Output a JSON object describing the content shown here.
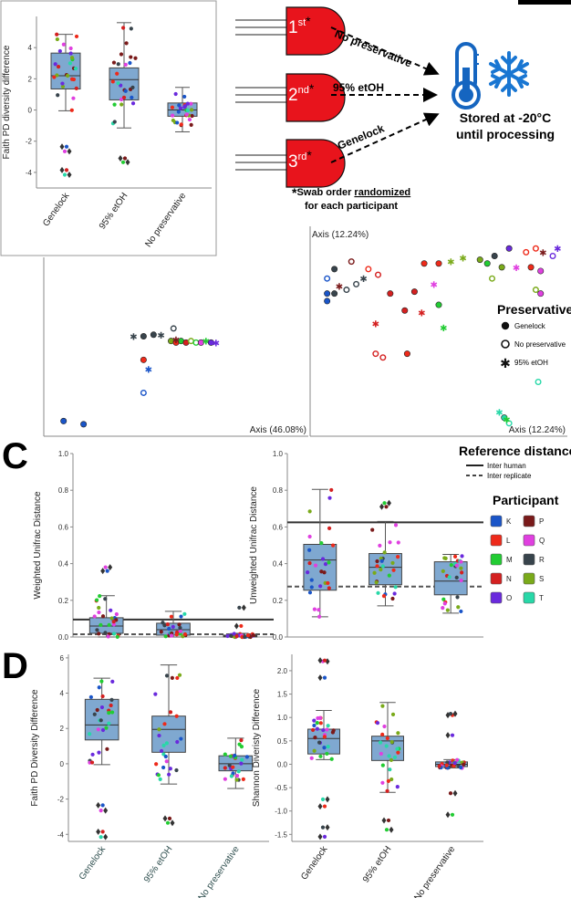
{
  "figure": {
    "panel_labels": {
      "c": "C",
      "d": "D"
    },
    "workflow": {
      "swabs": [
        {
          "num": "1",
          "sup": "st",
          "star": "*"
        },
        {
          "num": "2",
          "sup": "nd",
          "star": "*"
        },
        {
          "num": "3",
          "sup": "rd",
          "star": "*"
        }
      ],
      "arrow_labels": [
        "No preservative",
        "95% etOH",
        "Genelock"
      ],
      "storage_line1": "Stored at -20°C",
      "storage_line2": "until processing",
      "note_star": "*",
      "note_pre": "Swab order ",
      "note_underlined": "randomized",
      "note_line2": "for each participant",
      "colors": {
        "swab": "#e8141c",
        "thermometer": "#1565c0",
        "snowflake": "#1976d2"
      }
    },
    "preservative_legend": {
      "title": "Preservative",
      "items": [
        {
          "marker": "filled-circle",
          "label": "Genelock"
        },
        {
          "marker": "open-circle",
          "label": "No preservative"
        },
        {
          "marker": "star",
          "label": "95% etOH"
        }
      ]
    },
    "reference_legend": {
      "title": "Reference distance",
      "items": [
        {
          "style": "solid",
          "label": "Inter human"
        },
        {
          "style": "dashed",
          "label": "Inter replicate"
        }
      ]
    },
    "participant_legend": {
      "title": "Participant",
      "items": [
        {
          "label": "K",
          "color": "#1a55c8"
        },
        {
          "label": "P",
          "color": "#7a1a1a"
        },
        {
          "label": "L",
          "color": "#ee2a1a"
        },
        {
          "label": "Q",
          "color": "#e040e0"
        },
        {
          "label": "M",
          "color": "#22cc33"
        },
        {
          "label": "R",
          "color": "#38444c"
        },
        {
          "label": "N",
          "color": "#d42020"
        },
        {
          "label": "S",
          "color": "#7aaa1a"
        },
        {
          "label": "O",
          "color": "#6a2add"
        },
        {
          "label": "T",
          "color": "#28d8a8"
        }
      ]
    }
  },
  "chart_data": [
    {
      "id": "inset",
      "type": "box",
      "title": "",
      "ylabel": "Faith PD diversity difference",
      "xlabel": "",
      "categories": [
        "Genelock",
        "95% etOH",
        "No preservative"
      ],
      "ylim": [
        -5,
        6
      ],
      "yticks": [
        -4,
        -2,
        0,
        2,
        4
      ],
      "boxes": [
        {
          "q1": 1.35,
          "median": 2.2,
          "q3": 3.65,
          "whisker_low": -0.05,
          "whisker_high": 4.85
        },
        {
          "q1": 0.65,
          "median": 1.95,
          "q3": 2.7,
          "whisker_low": -1.15,
          "whisker_high": 5.6
        },
        {
          "q1": -0.4,
          "median": 0.0,
          "q3": 0.45,
          "whisker_low": -1.4,
          "whisker_high": 1.45
        }
      ],
      "outliers": [
        [
          -2.35,
          -2.65,
          -3.85,
          -4.15
        ],
        [
          -3.1,
          -3.35
        ],
        []
      ]
    },
    {
      "id": "pcoa-left",
      "type": "scatter",
      "xlabel": "Axis (46.08%)",
      "ylabel": "",
      "points": [
        {
          "x": 0.05,
          "y": 0.05,
          "participant": "K",
          "preservative": "Genelock"
        },
        {
          "x": 0.13,
          "y": 0.03,
          "participant": "K",
          "preservative": "Genelock"
        },
        {
          "x": 0.37,
          "y": 0.23,
          "participant": "K",
          "preservative": "No preservative"
        },
        {
          "x": 0.39,
          "y": 0.38,
          "participant": "K",
          "preservative": "95% etOH"
        },
        {
          "x": 0.37,
          "y": 0.44,
          "participant": "L",
          "preservative": "Genelock"
        },
        {
          "x": 0.41,
          "y": 0.6,
          "participant": "R",
          "preservative": "Genelock"
        },
        {
          "x": 0.37,
          "y": 0.59,
          "participant": "R",
          "preservative": "Genelock"
        },
        {
          "x": 0.33,
          "y": 0.59,
          "participant": "R",
          "preservative": "95% etOH"
        },
        {
          "x": 0.44,
          "y": 0.6,
          "participant": "R",
          "preservative": "95% etOH"
        },
        {
          "x": 0.49,
          "y": 0.64,
          "participant": "R",
          "preservative": "No preservative"
        },
        {
          "x": 0.48,
          "y": 0.56,
          "participant": "S",
          "preservative": "Genelock"
        },
        {
          "x": 0.5,
          "y": 0.55,
          "participant": "L",
          "preservative": "Genelock"
        },
        {
          "x": 0.52,
          "y": 0.56,
          "participant": "M",
          "preservative": "Genelock"
        },
        {
          "x": 0.54,
          "y": 0.55,
          "participant": "N",
          "preservative": "Genelock"
        },
        {
          "x": 0.56,
          "y": 0.56,
          "participant": "S",
          "preservative": "No preservative"
        },
        {
          "x": 0.58,
          "y": 0.55,
          "participant": "M",
          "preservative": "No preservative"
        },
        {
          "x": 0.5,
          "y": 0.57,
          "participant": "P",
          "preservative": "95% etOH"
        },
        {
          "x": 0.6,
          "y": 0.55,
          "participant": "Q",
          "preservative": "Genelock"
        },
        {
          "x": 0.62,
          "y": 0.56,
          "participant": "M",
          "preservative": "95% etOH"
        },
        {
          "x": 0.64,
          "y": 0.55,
          "participant": "O",
          "preservative": "Genelock"
        },
        {
          "x": 0.66,
          "y": 0.55,
          "participant": "O",
          "preservative": "95% etOH"
        }
      ]
    },
    {
      "id": "pcoa-right",
      "type": "scatter",
      "xlabel": "Axis (12.24%)",
      "ylabel": "Axis (12.24%)",
      "points": [
        {
          "x": 0.04,
          "y": 0.8,
          "participant": "K",
          "preservative": "No preservative"
        },
        {
          "x": 0.04,
          "y": 0.72,
          "participant": "K",
          "preservative": "Genelock"
        },
        {
          "x": 0.04,
          "y": 0.68,
          "participant": "K",
          "preservative": "Genelock"
        },
        {
          "x": 0.07,
          "y": 0.85,
          "participant": "R",
          "preservative": "Genelock"
        },
        {
          "x": 0.07,
          "y": 0.72,
          "participant": "R",
          "preservative": "Genelock"
        },
        {
          "x": 0.09,
          "y": 0.76,
          "participant": "P",
          "preservative": "95% etOH"
        },
        {
          "x": 0.12,
          "y": 0.74,
          "participant": "R",
          "preservative": "No preservative"
        },
        {
          "x": 0.14,
          "y": 0.89,
          "participant": "P",
          "preservative": "No preservative"
        },
        {
          "x": 0.16,
          "y": 0.77,
          "participant": "R",
          "preservative": "No preservative"
        },
        {
          "x": 0.19,
          "y": 0.8,
          "participant": "R",
          "preservative": "95% etOH"
        },
        {
          "x": 0.21,
          "y": 0.85,
          "participant": "L",
          "preservative": "No preservative"
        },
        {
          "x": 0.25,
          "y": 0.82,
          "participant": "N",
          "preservative": "No preservative"
        },
        {
          "x": 0.3,
          "y": 0.72,
          "participant": "N",
          "preservative": "Genelock"
        },
        {
          "x": 0.4,
          "y": 0.73,
          "participant": "N",
          "preservative": "Genelock"
        },
        {
          "x": 0.48,
          "y": 0.77,
          "participant": "Q",
          "preservative": "95% etOH"
        },
        {
          "x": 0.36,
          "y": 0.63,
          "participant": "N",
          "preservative": "Genelock"
        },
        {
          "x": 0.43,
          "y": 0.62,
          "participant": "N",
          "preservative": "95% etOH"
        },
        {
          "x": 0.5,
          "y": 0.66,
          "participant": "M",
          "preservative": "Genelock"
        },
        {
          "x": 0.24,
          "y": 0.56,
          "participant": "N",
          "preservative": "95% etOH"
        },
        {
          "x": 0.52,
          "y": 0.54,
          "participant": "M",
          "preservative": "95% etOH"
        },
        {
          "x": 0.24,
          "y": 0.4,
          "participant": "N",
          "preservative": "No preservative"
        },
        {
          "x": 0.27,
          "y": 0.38,
          "participant": "N",
          "preservative": "No preservative"
        },
        {
          "x": 0.37,
          "y": 0.4,
          "participant": "L",
          "preservative": "Genelock"
        },
        {
          "x": 0.44,
          "y": 0.88,
          "participant": "L",
          "preservative": "Genelock"
        },
        {
          "x": 0.5,
          "y": 0.88,
          "participant": "L",
          "preservative": "Genelock"
        },
        {
          "x": 0.55,
          "y": 0.89,
          "participant": "S",
          "preservative": "95% etOH"
        },
        {
          "x": 0.6,
          "y": 0.91,
          "participant": "S",
          "preservative": "95% etOH"
        },
        {
          "x": 0.67,
          "y": 0.9,
          "participant": "S",
          "preservative": "Genelock"
        },
        {
          "x": 0.7,
          "y": 0.88,
          "participant": "M",
          "preservative": "Genelock"
        },
        {
          "x": 0.73,
          "y": 0.92,
          "participant": "R",
          "preservative": "Genelock"
        },
        {
          "x": 0.76,
          "y": 0.86,
          "participant": "S",
          "preservative": "Genelock"
        },
        {
          "x": 0.72,
          "y": 0.8,
          "participant": "S",
          "preservative": "No preservative"
        },
        {
          "x": 0.79,
          "y": 0.96,
          "participant": "O",
          "preservative": "Genelock"
        },
        {
          "x": 0.82,
          "y": 0.86,
          "participant": "Q",
          "preservative": "95% etOH"
        },
        {
          "x": 0.86,
          "y": 0.94,
          "participant": "L",
          "preservative": "No preservative"
        },
        {
          "x": 0.9,
          "y": 0.96,
          "participant": "L",
          "preservative": "No preservative"
        },
        {
          "x": 0.93,
          "y": 0.94,
          "participant": "P",
          "preservative": "95% etOH"
        },
        {
          "x": 0.88,
          "y": 0.86,
          "participant": "L",
          "preservative": "Genelock"
        },
        {
          "x": 0.92,
          "y": 0.84,
          "participant": "Q",
          "preservative": "Genelock"
        },
        {
          "x": 0.97,
          "y": 0.92,
          "participant": "O",
          "preservative": "No preservative"
        },
        {
          "x": 0.99,
          "y": 0.96,
          "participant": "O",
          "preservative": "95% etOH"
        },
        {
          "x": 0.9,
          "y": 0.74,
          "participant": "S",
          "preservative": "No preservative"
        },
        {
          "x": 0.92,
          "y": 0.72,
          "participant": "Q",
          "preservative": "Genelock"
        },
        {
          "x": 0.91,
          "y": 0.25,
          "participant": "T",
          "preservative": "No preservative"
        },
        {
          "x": 0.75,
          "y": 0.09,
          "participant": "T",
          "preservative": "95% etOH"
        },
        {
          "x": 0.77,
          "y": 0.06,
          "participant": "T",
          "preservative": "Genelock"
        },
        {
          "x": 0.79,
          "y": 0.03,
          "participant": "T",
          "preservative": "No preservative"
        },
        {
          "x": 0.78,
          "y": 0.05,
          "participant": "M",
          "preservative": "95% etOH"
        }
      ]
    },
    {
      "id": "weighted",
      "type": "box",
      "ylabel": "Weighted Unifrac Distance",
      "categories": [
        "Genelock",
        "95% etOH",
        "No preservative"
      ],
      "show_xticklabels": false,
      "ylim": [
        0,
        1.0
      ],
      "yticks": [
        0.0,
        0.2,
        0.4,
        0.6,
        0.8,
        1.0
      ],
      "reference_lines": {
        "inter_human": 0.095,
        "inter_replicate": 0.015
      },
      "boxes": [
        {
          "q1": 0.02,
          "median": 0.06,
          "q3": 0.105,
          "whisker_low": 0.0,
          "whisker_high": 0.225
        },
        {
          "q1": 0.01,
          "median": 0.04,
          "q3": 0.075,
          "whisker_low": 0.0,
          "whisker_high": 0.14
        },
        {
          "q1": 0.0,
          "median": 0.005,
          "q3": 0.01,
          "whisker_low": 0.0,
          "whisker_high": 0.02
        }
      ],
      "outliers": [
        [
          0.36,
          0.38
        ],
        [],
        [
          0.06,
          0.16
        ]
      ]
    },
    {
      "id": "unweighted",
      "type": "box",
      "ylabel": "Unweighted Unifrac Distance",
      "categories": [
        "Genelock",
        "95% etOH",
        "No preservative"
      ],
      "show_xticklabels": false,
      "ylim": [
        0,
        1.0
      ],
      "yticks": [
        0.0,
        0.2,
        0.4,
        0.6,
        0.8,
        1.0
      ],
      "reference_lines": {
        "inter_human": 0.625,
        "inter_replicate": 0.275
      },
      "boxes": [
        {
          "q1": 0.255,
          "median": 0.42,
          "q3": 0.505,
          "whisker_low": 0.11,
          "whisker_high": 0.805
        },
        {
          "q1": 0.285,
          "median": 0.38,
          "q3": 0.455,
          "whisker_low": 0.17,
          "whisker_high": 0.63
        },
        {
          "q1": 0.23,
          "median": 0.305,
          "q3": 0.41,
          "whisker_low": 0.13,
          "whisker_high": 0.45
        }
      ],
      "outliers": [
        [],
        [
          0.71,
          0.73
        ],
        []
      ]
    },
    {
      "id": "faith-d",
      "type": "box",
      "ylabel": "Faith PD Diversity Difference",
      "categories": [
        "Genelock",
        "95% etOH",
        "No preservative"
      ],
      "ylim": [
        -4.4,
        6.2
      ],
      "yticks": [
        -4,
        -2,
        0,
        2,
        4,
        6
      ],
      "boxes": [
        {
          "q1": 1.35,
          "median": 2.2,
          "q3": 3.65,
          "whisker_low": -0.05,
          "whisker_high": 4.85
        },
        {
          "q1": 0.65,
          "median": 1.95,
          "q3": 2.7,
          "whisker_low": -1.15,
          "whisker_high": 5.6
        },
        {
          "q1": -0.4,
          "median": 0.0,
          "q3": 0.45,
          "whisker_low": -1.4,
          "whisker_high": 1.45
        }
      ],
      "outliers": [
        [
          -2.35,
          -2.65,
          -3.85,
          -4.15
        ],
        [
          -3.1,
          -3.35
        ],
        []
      ]
    },
    {
      "id": "shannon-d",
      "type": "box",
      "ylabel": "Shannon Diveristy Difference",
      "categories": [
        "Genelock",
        "95% etOH",
        "No preservative"
      ],
      "ylim": [
        -1.65,
        2.35
      ],
      "yticks": [
        -1.5,
        -1.0,
        -0.5,
        0.0,
        0.5,
        1.0,
        1.5,
        2.0
      ],
      "boxes": [
        {
          "q1": 0.22,
          "median": 0.55,
          "q3": 0.75,
          "whisker_low": 0.1,
          "whisker_high": 1.15
        },
        {
          "q1": 0.08,
          "median": 0.5,
          "q3": 0.6,
          "whisker_low": -0.6,
          "whisker_high": 1.32
        },
        {
          "q1": -0.05,
          "median": 0.0,
          "q3": 0.05,
          "whisker_low": -0.08,
          "whisker_high": 0.1
        }
      ],
      "outliers": [
        [
          1.85,
          2.2,
          2.22,
          -0.75,
          -0.9,
          -1.35,
          -1.55
        ],
        [
          -1.2,
          -1.4
        ],
        [
          1.05,
          1.08,
          0.62,
          -0.62,
          -1.08
        ]
      ]
    }
  ]
}
